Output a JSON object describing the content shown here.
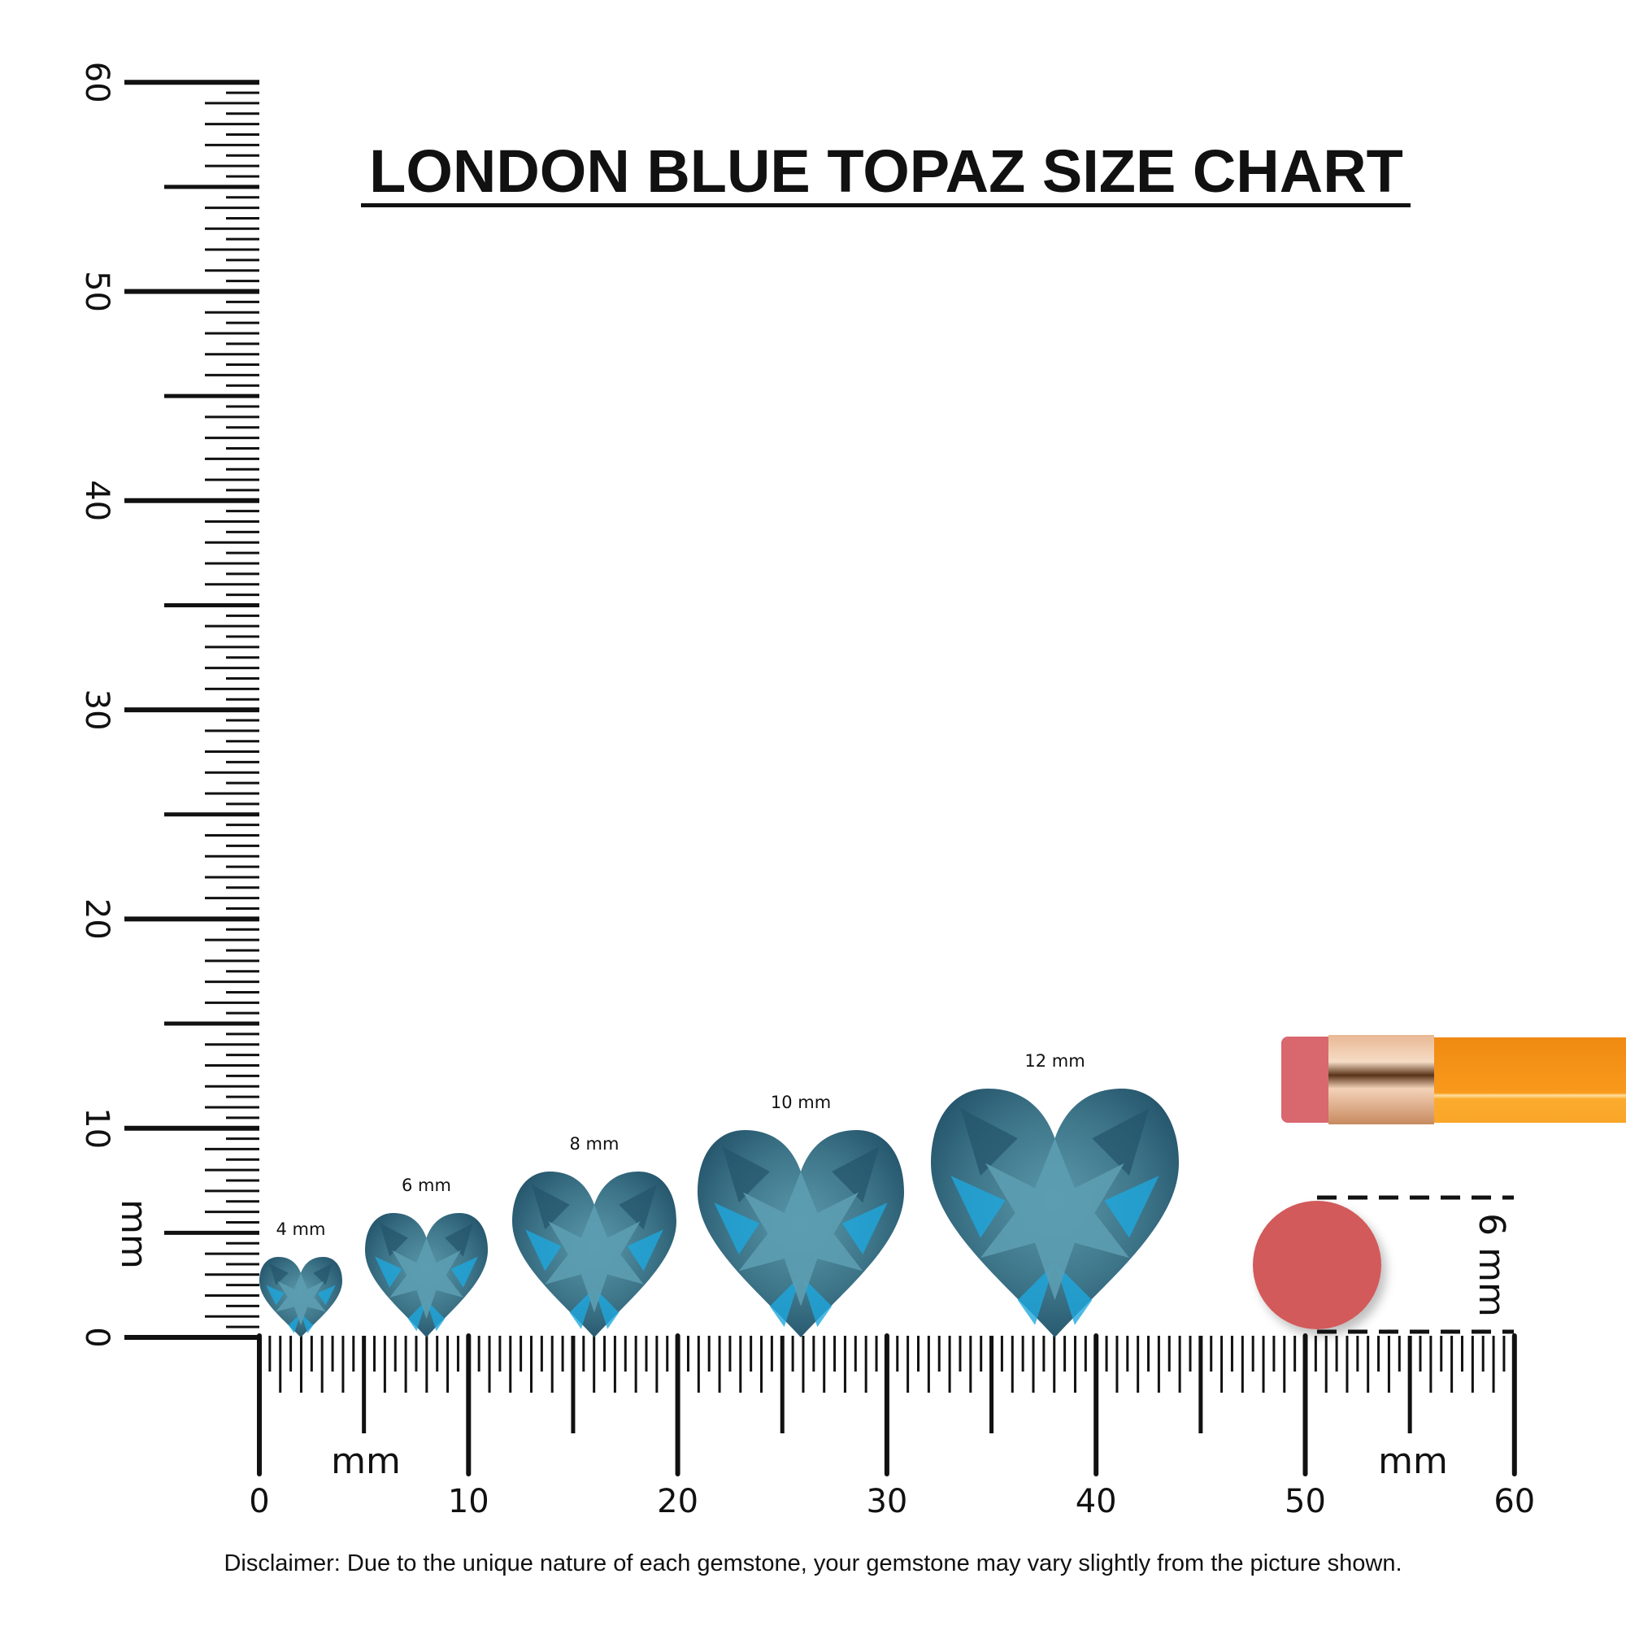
{
  "title": "LONDON BLUE TOPAZ SIZE CHART",
  "disclaimer": "Disclaimer: Due to the unique nature of each gemstone, your gemstone may vary slightly from the picture shown.",
  "vertical_ruler": {
    "unit": "mm",
    "labels": [
      "0",
      "10",
      "20",
      "30",
      "40",
      "50",
      "60"
    ]
  },
  "horizontal_ruler": {
    "unit_left": "mm",
    "unit_right": "mm",
    "labels": [
      "0",
      "10",
      "20",
      "30",
      "40",
      "50",
      "60"
    ]
  },
  "gemstones": [
    {
      "label": "4 mm",
      "size_mm": 4
    },
    {
      "label": "6 mm",
      "size_mm": 6
    },
    {
      "label": "8 mm",
      "size_mm": 8
    },
    {
      "label": "10 mm",
      "size_mm": 10
    },
    {
      "label": "12 mm",
      "size_mm": 12
    }
  ],
  "eraser_reference": {
    "label": "6 mm",
    "size_mm": 6
  },
  "colors": {
    "gem_base": "#3d7488",
    "gem_dark": "#24546a",
    "gem_light": "#5b9cb0",
    "gem_bright": "#1ea7dd",
    "eraser": "#d25a5a",
    "pencil_body": "#f7931e",
    "ferrule": "#d9a070"
  }
}
